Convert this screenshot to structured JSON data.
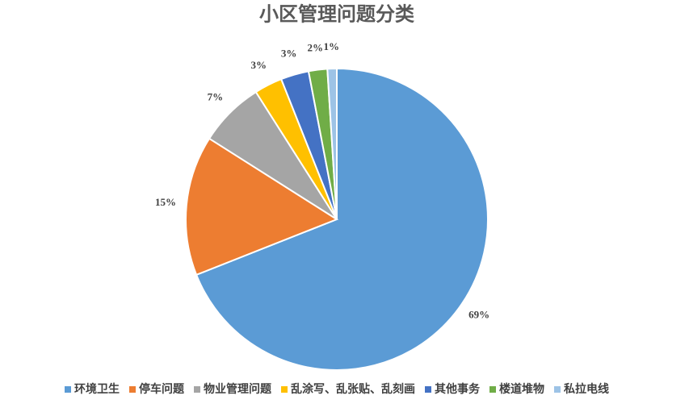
{
  "chart_data": {
    "type": "pie",
    "title": "小区管理问题分类",
    "categories": [
      "环境卫生",
      "停车问题",
      "物业管理问题",
      "乱涂写、乱张贴、乱刻画",
      "其他事务",
      "楼道堆物",
      "私拉电线"
    ],
    "values": [
      69,
      15,
      7,
      3,
      3,
      2,
      1
    ],
    "value_labels": [
      "69%",
      "15%",
      "7%",
      "3%",
      "3%",
      "2%",
      "1%"
    ],
    "colors": [
      "#5b9bd5",
      "#ed7d31",
      "#a5a5a5",
      "#ffc000",
      "#4472c4",
      "#70ad47",
      "#9dc3e6"
    ],
    "legend": "bottom"
  }
}
